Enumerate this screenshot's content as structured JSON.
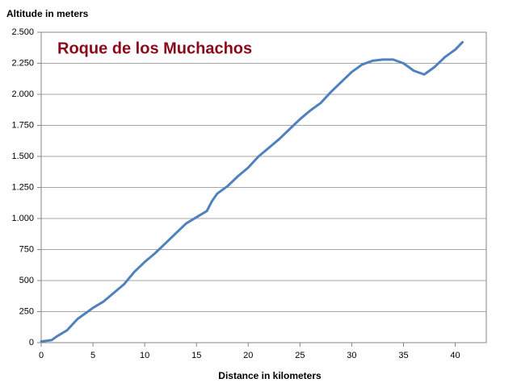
{
  "chart_data": {
    "type": "line",
    "title": "Roque de los Muchachos",
    "y_label": "Altitude in meters",
    "x_label": "Distance in kilometers",
    "x": [
      0,
      1,
      1.5,
      2.5,
      3.5,
      4,
      5,
      6,
      7,
      8,
      9,
      10,
      11,
      12,
      13,
      14,
      15,
      16,
      16.5,
      17,
      18,
      19,
      20,
      21,
      22,
      23,
      24,
      25,
      26,
      27,
      28,
      29,
      30,
      31,
      32,
      33,
      34,
      35,
      36,
      37,
      38,
      39,
      40,
      40.7
    ],
    "series": [
      {
        "color": "#4f81bd",
        "values": [
          10,
          20,
          50,
          100,
          190,
          220,
          280,
          330,
          400,
          470,
          570,
          650,
          720,
          800,
          880,
          960,
          1010,
          1060,
          1140,
          1200,
          1260,
          1340,
          1410,
          1500,
          1570,
          1640,
          1720,
          1800,
          1870,
          1930,
          2020,
          2100,
          2180,
          2240,
          2270,
          2280,
          2280,
          2250,
          2190,
          2160,
          2220,
          2300,
          2360,
          2420
        ]
      }
    ],
    "xlim": [
      0,
      43
    ],
    "xticks": [
      0,
      5,
      10,
      15,
      20,
      25,
      30,
      35,
      40
    ],
    "ylim": [
      0,
      2500
    ],
    "yticks": [
      0,
      250,
      500,
      750,
      {
        "value": 1000,
        "label": "1.000"
      },
      {
        "value": 1250,
        "label": "1.250"
      },
      {
        "value": 1500,
        "label": "1.500"
      },
      {
        "value": 1750,
        "label": "1.750"
      },
      {
        "value": 2000,
        "label": "2.000"
      },
      {
        "value": 2250,
        "label": "2.250"
      },
      {
        "value": 2500,
        "label": "2.500"
      }
    ],
    "grid": true
  }
}
